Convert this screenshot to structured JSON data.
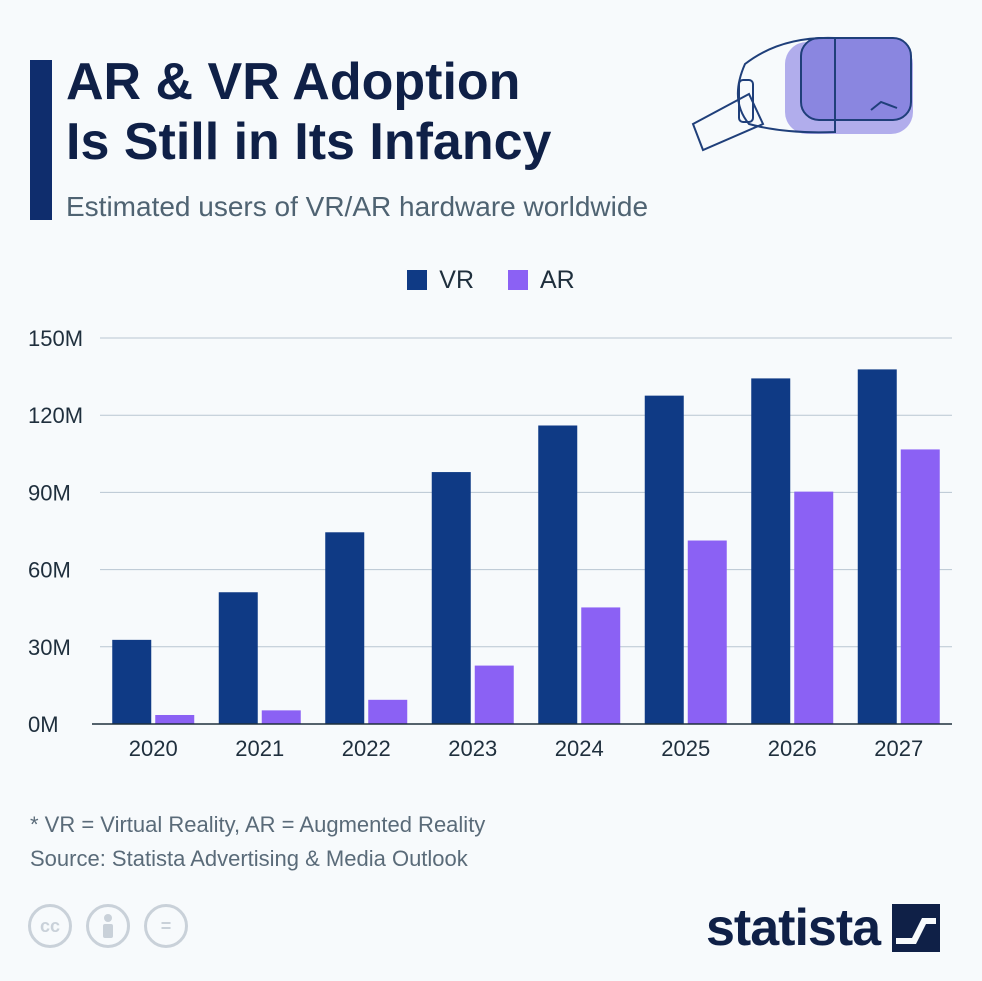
{
  "header": {
    "title_line1": "AR & VR Adoption",
    "title_line2": "Is Still in Its Infancy",
    "subtitle": "Estimated users of VR/AR hardware worldwide"
  },
  "legend": {
    "vr_label": "VR",
    "ar_label": "AR"
  },
  "chart_data": {
    "type": "bar",
    "categories": [
      "2020",
      "2021",
      "2022",
      "2023",
      "2024",
      "2025",
      "2026",
      "2027"
    ],
    "series": [
      {
        "name": "VR",
        "color": "#0f3a85",
        "values": [
          32.7,
          51.2,
          74.5,
          97.9,
          116.0,
          127.6,
          134.3,
          137.8
        ]
      },
      {
        "name": "AR",
        "color": "#8b61f4",
        "values": [
          3.5,
          5.3,
          9.4,
          22.7,
          45.3,
          71.3,
          90.3,
          106.7
        ]
      }
    ],
    "yticks": [
      {
        "value": 0,
        "label": "0M"
      },
      {
        "value": 30,
        "label": "30M"
      },
      {
        "value": 60,
        "label": "60M"
      },
      {
        "value": 90,
        "label": "90M"
      },
      {
        "value": 120,
        "label": "120M"
      },
      {
        "value": 150,
        "label": "150M"
      }
    ],
    "ylim": [
      0,
      150
    ],
    "grid": true,
    "legend_position": "top-center"
  },
  "footer": {
    "definition": "* VR = Virtual Reality, AR = Augmented Reality",
    "source": "Source: Statista Advertising & Media Outlook",
    "license_icons": [
      "cc-icon",
      "attribution-icon",
      "no-derivatives-icon"
    ],
    "license_cc": "cc",
    "license_nd": "=",
    "brand": "statista"
  },
  "colors": {
    "accent": "#0f2d6d",
    "vr": "#0f3a85",
    "ar": "#8b61f4",
    "title": "#0f2047"
  }
}
